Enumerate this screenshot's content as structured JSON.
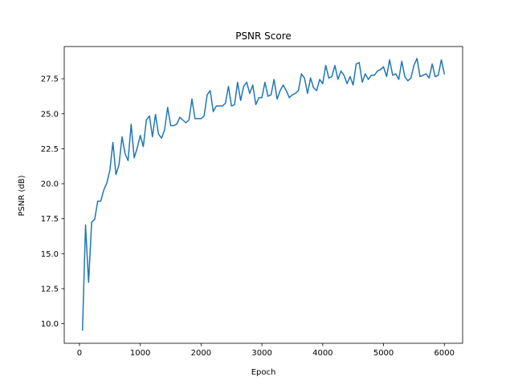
{
  "chart_data": {
    "type": "line",
    "title": "PSNR Score",
    "xlabel": "Epoch",
    "ylabel": "PSNR (dB)",
    "xlim": [
      -250,
      6300
    ],
    "ylim": [
      8.6,
      29.8
    ],
    "x_ticks": [
      0,
      1000,
      2000,
      3000,
      4000,
      5000,
      6000
    ],
    "x_tick_labels": [
      "0",
      "1000",
      "2000",
      "3000",
      "4000",
      "5000",
      "6000"
    ],
    "y_ticks": [
      10.0,
      12.5,
      15.0,
      17.5,
      20.0,
      22.5,
      25.0,
      27.5
    ],
    "y_tick_labels": [
      "10.0",
      "12.5",
      "15.0",
      "17.5",
      "20.0",
      "22.5",
      "25.0",
      "27.5"
    ],
    "grid": false,
    "line_color": "#1f77b4",
    "series": [
      {
        "x": [
          50,
          100,
          150,
          200,
          250,
          300,
          350,
          400,
          450,
          500,
          550,
          600,
          650,
          700,
          750,
          800,
          850,
          900,
          950,
          1000,
          1050,
          1100,
          1150,
          1200,
          1250,
          1300,
          1350,
          1400,
          1450,
          1500,
          1550,
          1600,
          1650,
          1700,
          1750,
          1800,
          1850,
          1900,
          1950,
          2000,
          2050,
          2100,
          2150,
          2200,
          2250,
          2300,
          2350,
          2400,
          2450,
          2500,
          2550,
          2600,
          2650,
          2700,
          2750,
          2800,
          2850,
          2900,
          2950,
          3000,
          3050,
          3100,
          3150,
          3200,
          3250,
          3300,
          3350,
          3400,
          3450,
          3500,
          3550,
          3600,
          3650,
          3700,
          3750,
          3800,
          3850,
          3900,
          3950,
          4000,
          4050,
          4100,
          4150,
          4200,
          4250,
          4300,
          4350,
          4400,
          4450,
          4500,
          4550,
          4600,
          4650,
          4700,
          4750,
          4800,
          4850,
          4900,
          4950,
          5000,
          5050,
          5100,
          5150,
          5200,
          5250,
          5300,
          5350,
          5400,
          5450,
          5500,
          5550,
          5600,
          5650,
          5700,
          5750,
          5800,
          5850,
          5900,
          5950,
          6000
        ],
        "values": [
          9.55,
          17.05,
          12.95,
          17.25,
          17.45,
          18.75,
          18.75,
          19.55,
          20.05,
          20.95,
          22.95,
          20.65,
          21.35,
          23.35,
          22.15,
          21.65,
          24.25,
          21.85,
          22.55,
          23.45,
          22.65,
          24.55,
          24.85,
          23.35,
          24.95,
          23.55,
          23.25,
          23.85,
          25.45,
          24.15,
          24.15,
          24.25,
          24.75,
          24.55,
          24.35,
          24.55,
          26.05,
          24.65,
          24.65,
          24.65,
          24.85,
          26.35,
          26.65,
          25.15,
          25.55,
          25.55,
          25.55,
          25.75,
          26.95,
          25.55,
          25.65,
          27.25,
          25.95,
          26.95,
          27.25,
          26.45,
          27.05,
          25.65,
          26.15,
          26.15,
          27.25,
          26.25,
          26.35,
          27.45,
          26.05,
          26.65,
          27.05,
          26.65,
          26.15,
          26.35,
          26.45,
          26.65,
          27.85,
          27.55,
          26.45,
          27.55,
          26.85,
          26.65,
          27.45,
          27.15,
          28.45,
          27.55,
          27.65,
          28.45,
          27.45,
          28.05,
          27.75,
          27.15,
          27.65,
          27.05,
          28.55,
          28.65,
          27.25,
          27.85,
          27.45,
          27.75,
          27.75,
          28.05,
          28.15,
          28.35,
          27.65,
          28.85,
          27.75,
          27.85,
          27.45,
          28.75,
          27.65,
          27.35,
          27.55,
          28.45,
          28.95,
          27.65,
          27.75,
          27.85,
          27.55,
          28.55,
          27.65,
          27.75,
          28.85,
          27.85
        ]
      }
    ]
  }
}
